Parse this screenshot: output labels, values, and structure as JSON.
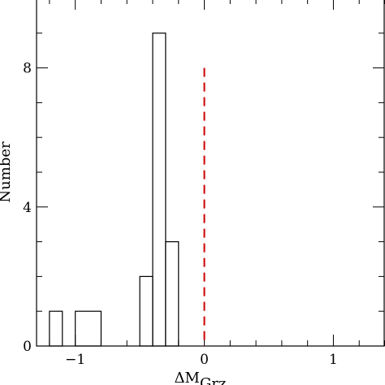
{
  "chart_data": {
    "type": "bar",
    "bins": [
      {
        "x0": -1.2,
        "x1": -1.1,
        "value": 1
      },
      {
        "x0": -1.0,
        "x1": -0.8,
        "value": 1
      },
      {
        "x0": -0.5,
        "x1": -0.4,
        "value": 2
      },
      {
        "x0": -0.4,
        "x1": -0.3,
        "value": 9
      },
      {
        "x0": -0.3,
        "x1": -0.2,
        "value": 3
      }
    ],
    "reference_line": {
      "x": 0,
      "y_top": 8,
      "style": "dashed",
      "color": "#cc0000"
    },
    "xlabel": "ΔM",
    "xlabel_sub": "Grz",
    "ylabel": "Number",
    "xlim": [
      -1.3,
      1.4
    ],
    "ylim": [
      0,
      10
    ],
    "x_ticks": [
      {
        "value": -1,
        "label": "−1"
      },
      {
        "value": 0,
        "label": "0"
      },
      {
        "value": 1,
        "label": "1"
      }
    ],
    "y_ticks": [
      {
        "value": 0,
        "label": "0"
      },
      {
        "value": 4,
        "label": "4"
      },
      {
        "value": 8,
        "label": "8"
      }
    ],
    "x_minor_step": 0.2,
    "y_minor_step": 1,
    "grid": false,
    "colors": {
      "bars": "#000000",
      "reference": "#cc0000",
      "axes": "#000000"
    }
  }
}
